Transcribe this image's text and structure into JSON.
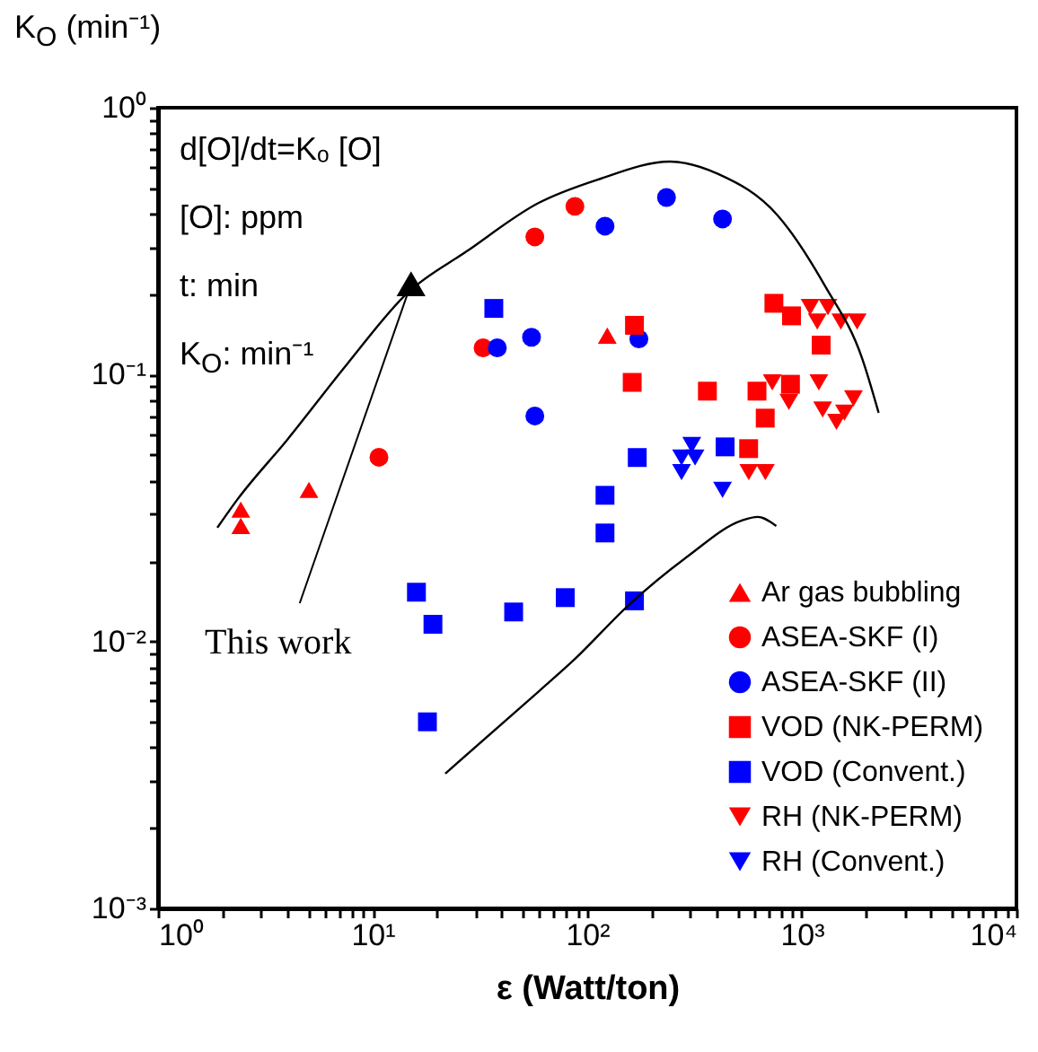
{
  "chart_data": {
    "type": "scatter",
    "xlabel": "ε (Watt/ton)",
    "ylabel": "K$_{O}$  (min⁻¹)",
    "log": "xy",
    "grid": false,
    "legend": "bottom right",
    "xlim": [
      1,
      10000
    ],
    "ylim": [
      0.001,
      1
    ],
    "xticks": [
      {
        "value": 1,
        "label": "10⁰"
      },
      {
        "value": 2,
        "label": null
      },
      {
        "value": 3,
        "label": null
      },
      {
        "value": 4,
        "label": null
      },
      {
        "value": 5,
        "label": null
      },
      {
        "value": 6,
        "label": null
      },
      {
        "value": 7,
        "label": null
      },
      {
        "value": 8,
        "label": null
      },
      {
        "value": 9,
        "label": null
      },
      {
        "value": 10,
        "label": "10¹"
      },
      {
        "value": 20,
        "label": null
      },
      {
        "value": 30,
        "label": null
      },
      {
        "value": 40,
        "label": null
      },
      {
        "value": 50,
        "label": null
      },
      {
        "value": 60,
        "label": null
      },
      {
        "value": 70,
        "label": null
      },
      {
        "value": 80,
        "label": null
      },
      {
        "value": 90,
        "label": null
      },
      {
        "value": 100,
        "label": "10²"
      },
      {
        "value": 200,
        "label": null
      },
      {
        "value": 300,
        "label": null
      },
      {
        "value": 400,
        "label": null
      },
      {
        "value": 500,
        "label": null
      },
      {
        "value": 600,
        "label": null
      },
      {
        "value": 700,
        "label": null
      },
      {
        "value": 800,
        "label": null
      },
      {
        "value": 900,
        "label": null
      },
      {
        "value": 1000,
        "label": "10³"
      },
      {
        "value": 2000,
        "label": null
      },
      {
        "value": 3000,
        "label": null
      },
      {
        "value": 4000,
        "label": null
      },
      {
        "value": 5000,
        "label": null
      },
      {
        "value": 6000,
        "label": null
      },
      {
        "value": 7000,
        "label": null
      },
      {
        "value": 8000,
        "label": null
      },
      {
        "value": 9000,
        "label": null
      },
      {
        "value": 10000,
        "label": "10⁴"
      }
    ],
    "yticks": [
      {
        "value": 0.001,
        "label": "10⁻³"
      },
      {
        "value": 0.002,
        "label": null
      },
      {
        "value": 0.003,
        "label": null
      },
      {
        "value": 0.004,
        "label": null
      },
      {
        "value": 0.005,
        "label": null
      },
      {
        "value": 0.006,
        "label": null
      },
      {
        "value": 0.007,
        "label": null
      },
      {
        "value": 0.008,
        "label": null
      },
      {
        "value": 0.009,
        "label": null
      },
      {
        "value": 0.01,
        "label": "10⁻²"
      },
      {
        "value": 0.02,
        "label": null
      },
      {
        "value": 0.03,
        "label": null
      },
      {
        "value": 0.04,
        "label": null
      },
      {
        "value": 0.05,
        "label": null
      },
      {
        "value": 0.06,
        "label": null
      },
      {
        "value": 0.07,
        "label": null
      },
      {
        "value": 0.08,
        "label": null
      },
      {
        "value": 0.09,
        "label": null
      },
      {
        "value": 0.1,
        "label": "10⁻¹"
      },
      {
        "value": 0.2,
        "label": null
      },
      {
        "value": 0.3,
        "label": null
      },
      {
        "value": 0.4,
        "label": null
      },
      {
        "value": 0.5,
        "label": null
      },
      {
        "value": 0.6,
        "label": null
      },
      {
        "value": 0.7,
        "label": null
      },
      {
        "value": 0.8,
        "label": null
      },
      {
        "value": 0.9,
        "label": null
      },
      {
        "value": 1,
        "label": "10⁰"
      }
    ],
    "series": [
      {
        "name": "Ar gas bubbling",
        "color": "#ff0000",
        "marker": "triangle",
        "x": [
          2.43,
          2.43,
          5.05,
          124
        ],
        "values": [
          0.0312,
          0.0271,
          0.037,
          0.14
        ]
      },
      {
        "name": "ASEA-SKF (I)",
        "color": "#ff0000",
        "marker": "circle",
        "x": [
          10.7,
          32.7,
          57,
          87.6
        ],
        "values": [
          0.049,
          0.126,
          0.328,
          0.427
        ]
      },
      {
        "name": "ASEA-SKF (II)",
        "color": "#0000ff",
        "marker": "circle",
        "x": [
          38.1,
          55,
          57,
          121,
          174,
          234,
          427
        ],
        "values": [
          0.126,
          0.138,
          0.07,
          0.36,
          0.136,
          0.461,
          0.383
        ]
      },
      {
        "name": "VOD (NK-PERM)",
        "color": "#ff0000",
        "marker": "square",
        "x": [
          162,
          166,
          363,
          565,
          618,
          675,
          741,
          885,
          895,
          1230
        ],
        "values": [
          0.0935,
          0.153,
          0.0867,
          0.0528,
          0.0867,
          0.0687,
          0.185,
          0.092,
          0.166,
          0.129
        ]
      },
      {
        "name": "VOD (Convent.)",
        "color": "#0000ff",
        "marker": "square",
        "x": [
          16,
          18,
          19.1,
          36.7,
          45.4,
          79,
          121,
          121,
          166,
          171,
          439
        ],
        "values": [
          0.0153,
          0.005,
          0.0116,
          0.177,
          0.0129,
          0.0146,
          0.0353,
          0.0255,
          0.0142,
          0.0489,
          0.0536
        ]
      },
      {
        "name": "RH (NK-PERM)",
        "color": "#ff0000",
        "marker": "triangle-down",
        "x": [
          566,
          676,
          728,
          870,
          1093,
          1180,
          1200,
          1250,
          1323,
          1450,
          1520,
          1580,
          1740,
          1810
        ],
        "values": [
          0.0431,
          0.0431,
          0.0935,
          0.079,
          0.179,
          0.158,
          0.0935,
          0.074,
          0.179,
          0.0665,
          0.158,
          0.072,
          0.0814,
          0.158
        ]
      },
      {
        "name": "RH (Convent.)",
        "color": "#0000ff",
        "marker": "triangle-down",
        "x": [
          275,
          275,
          307,
          318,
          427
        ],
        "values": [
          0.0489,
          0.0431,
          0.0544,
          0.0489,
          0.037
        ]
      },
      {
        "color": "#000000",
        "marker": "triangle",
        "x": [
          15.1
        ],
        "values": [
          0.219
        ]
      },
      {
        "type": "line",
        "color": "#000000",
        "x": [
          1.89,
          2.34,
          4.0,
          7.57,
          14.6,
          27.5,
          59.4,
          112,
          243,
          408,
          771,
          1290,
          1910,
          2280
        ],
        "values": [
          0.0267,
          0.034,
          0.057,
          0.109,
          0.203,
          0.29,
          0.44,
          0.538,
          0.628,
          0.564,
          0.395,
          0.213,
          0.115,
          0.0719
        ]
      },
      {
        "type": "line",
        "color": "#000000",
        "x": [
          21.8,
          59.4,
          87.6,
          156,
          295,
          525,
          622,
          760
        ],
        "values": [
          0.0032,
          0.0065,
          0.0086,
          0.0137,
          0.0209,
          0.0284,
          0.0293,
          0.0271
        ]
      }
    ],
    "annotations": [
      "d[O]/dt=Kₒ [O]",
      "[O]: ppm",
      "t: min",
      "K$_{O}$: min⁻¹",
      {
        "text": "This work",
        "x": 15.1,
        "y": 0.219
      }
    ]
  }
}
